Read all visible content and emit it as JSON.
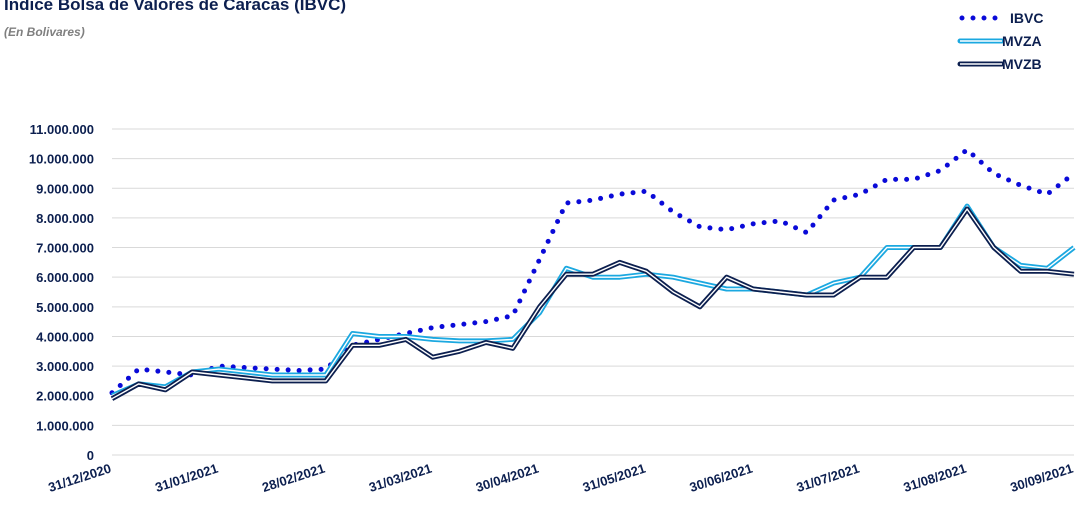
{
  "chart_data": {
    "type": "line",
    "title": "Índice Bolsa de Valores de Caracas (IBVC)",
    "subtitle": "(En Bolivares)",
    "categories": [
      "31/12/2020",
      null,
      null,
      null,
      "31/01/2021",
      null,
      null,
      null,
      "28/02/2021",
      null,
      null,
      null,
      "31/03/2021",
      null,
      null,
      null,
      "30/04/2021",
      null,
      null,
      null,
      "31/05/2021",
      null,
      null,
      null,
      "30/06/2021",
      null,
      null,
      null,
      "31/07/2021",
      null,
      null,
      null,
      "31/08/2021",
      null,
      null,
      null,
      "30/09/2021"
    ],
    "series": [
      {
        "name": "IBVC",
        "color": "#0a0ad8",
        "style": "dotted",
        "values": [
          2100000,
          2900000,
          2800000,
          2700000,
          3000000,
          2950000,
          2900000,
          2850000,
          2900000,
          3700000,
          3900000,
          4100000,
          4300000,
          4400000,
          4500000,
          4700000,
          6600000,
          8500000,
          8600000,
          8800000,
          8900000,
          8200000,
          7700000,
          7600000,
          7800000,
          7900000,
          7500000,
          8600000,
          8800000,
          9300000,
          9300000,
          9600000,
          10300000,
          9500000,
          9100000,
          8800000,
          9500000
        ]
      },
      {
        "name": "MVZA",
        "color": "#1ba8e0",
        "style": "double",
        "values": [
          2000000,
          2400000,
          2300000,
          2800000,
          2900000,
          2800000,
          2700000,
          2700000,
          2700000,
          4100000,
          4000000,
          4000000,
          3900000,
          3850000,
          3850000,
          3900000,
          4800000,
          6300000,
          6000000,
          6000000,
          6100000,
          6000000,
          5800000,
          5600000,
          5600000,
          5500000,
          5400000,
          5800000,
          6000000,
          7000000,
          7000000,
          7000000,
          8400000,
          7000000,
          6400000,
          6300000,
          7000000
        ]
      },
      {
        "name": "MVZB",
        "color": "#0c1f4f",
        "style": "double",
        "values": [
          1900000,
          2400000,
          2200000,
          2800000,
          2700000,
          2600000,
          2500000,
          2500000,
          2500000,
          3700000,
          3700000,
          3900000,
          3300000,
          3500000,
          3800000,
          3600000,
          5000000,
          6100000,
          6100000,
          6500000,
          6200000,
          5500000,
          5000000,
          6000000,
          5600000,
          5500000,
          5400000,
          5400000,
          6000000,
          6000000,
          7000000,
          7000000,
          8300000,
          7000000,
          6200000,
          6200000,
          6100000
        ]
      }
    ],
    "ylim": [
      0,
      11000000
    ],
    "yticks": [
      0,
      {
        "value": 1000000,
        "label": "1.000.000"
      },
      {
        "value": 2000000,
        "label": "2.000.000"
      },
      {
        "value": 3000000,
        "label": "3.000.000"
      },
      {
        "value": 4000000,
        "label": "4.000.000"
      },
      {
        "value": 5000000,
        "label": "5.000.000"
      },
      {
        "value": 6000000,
        "label": "6.000.000"
      },
      {
        "value": 7000000,
        "label": "7.000.000"
      },
      {
        "value": 8000000,
        "label": "8.000.000"
      },
      {
        "value": 9000000,
        "label": "9.000.000"
      },
      {
        "value": 10000000,
        "label": "10.000.000"
      },
      {
        "value": 11000000,
        "label": "11.000.000"
      }
    ],
    "grid": true,
    "legend": "top-right"
  }
}
